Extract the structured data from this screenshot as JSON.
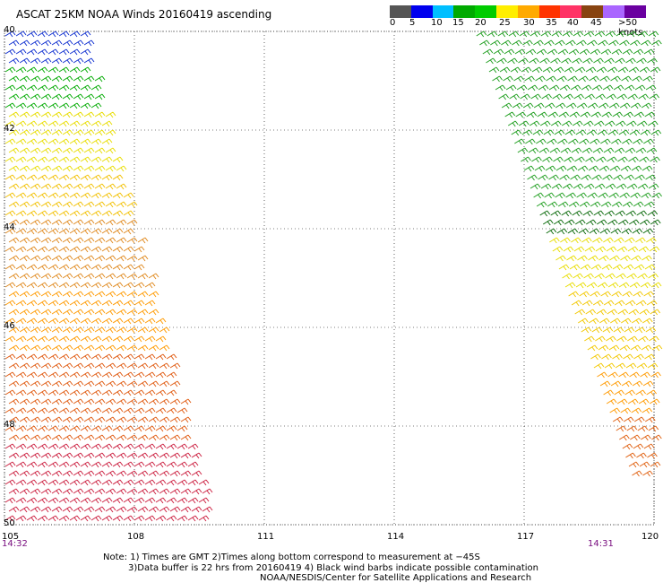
{
  "title": "ASCAT 25KM NOAA Winds 20160419 ascending",
  "legend": {
    "labels": [
      "0",
      "5",
      "10",
      "15",
      "20",
      "25",
      "30",
      "35",
      "40",
      "45",
      ">50 knots"
    ],
    "colors": [
      "#555555",
      "#0000ee",
      "#00bfff",
      "#00aa00",
      "#00cc00",
      "#ffee00",
      "#ffaa00",
      "#ff3300",
      "#ff3366",
      "#884411",
      "#aa66ff",
      "#6a00a0"
    ]
  },
  "lat_ticks": [
    "40",
    "42",
    "44",
    "46",
    "48",
    "50"
  ],
  "lon_ticks": [
    "105",
    "108",
    "111",
    "114",
    "117",
    "120"
  ],
  "times": {
    "left": "14:32",
    "right": "14:31"
  },
  "notes": {
    "line1": "Note: 1) Times are GMT 2)Times along bottom correspond to measurement at −45S",
    "line2": "3)Data buffer is 22 hrs from 20160419 4) Black wind barbs indicate possible contamination",
    "line3": "NOAA/NESDIS/Center for Satellite Applications and Research"
  }
}
